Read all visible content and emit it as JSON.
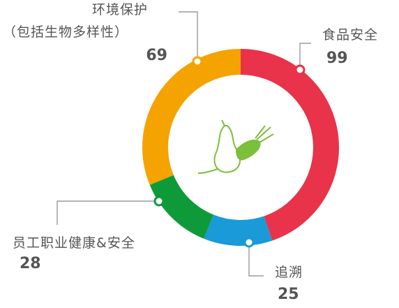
{
  "chart_data": {
    "type": "donut",
    "categories": [
      "食品安全",
      "追溯",
      "员工职业健康&安全",
      "环境保护\n（包括生物多样性）"
    ],
    "values": [
      99,
      25,
      28,
      69
    ],
    "colors": [
      "#e8334a",
      "#1a9ad6",
      "#0f9a3a",
      "#f4a300"
    ]
  }
}
